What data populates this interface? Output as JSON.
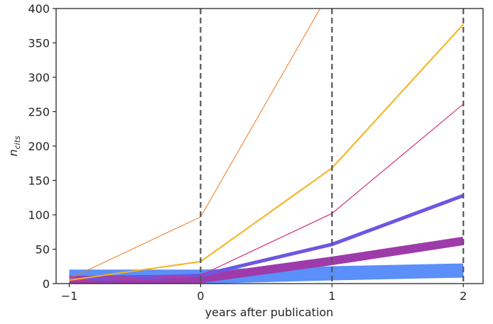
{
  "chart_data": {
    "type": "line",
    "xlabel": "years after publication",
    "ylabel_main": "n",
    "ylabel_sub": "cits",
    "xlim": [
      -1.1,
      2.15
    ],
    "ylim": [
      0,
      400
    ],
    "x_ticks": [
      -1,
      0,
      1,
      2
    ],
    "x_tick_labels": [
      "−1",
      "0",
      "1",
      "2"
    ],
    "y_ticks": [
      0,
      50,
      100,
      150,
      200,
      250,
      300,
      350,
      400
    ],
    "y_tick_labels": [
      "0",
      "50",
      "100",
      "150",
      "200",
      "250",
      "300",
      "350",
      "400"
    ],
    "vlines": [
      0,
      1,
      2
    ],
    "grid": false,
    "series": [
      {
        "color": "#f07820",
        "x": [
          -1,
          0,
          1
        ],
        "values": [
          7,
          97,
          430
        ]
      },
      {
        "color": "#f5b21a",
        "x": [
          -1,
          0,
          1,
          2
        ],
        "values": [
          5,
          32,
          168,
          377
        ]
      },
      {
        "color": "#d6307a",
        "x": [
          -1,
          0,
          1,
          2
        ],
        "values": [
          4,
          12,
          102,
          261
        ]
      },
      {
        "color": "#6b57e3",
        "x": [
          -1,
          0,
          1,
          2
        ],
        "values": [
          5,
          12,
          57,
          128
        ]
      },
      {
        "color": "#9e3bab",
        "x": [
          -1,
          0,
          1,
          2
        ],
        "values": [
          5,
          7,
          33,
          62
        ]
      },
      {
        "color": "#5b8ff9",
        "x": [
          -1,
          0,
          1,
          2
        ],
        "values": [
          10,
          10,
          15,
          19
        ]
      }
    ]
  }
}
